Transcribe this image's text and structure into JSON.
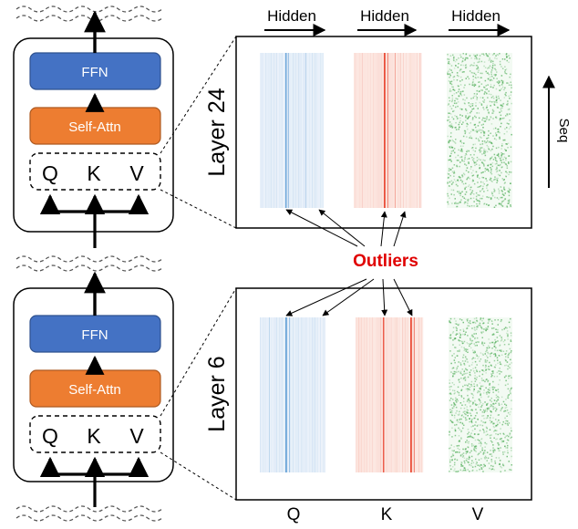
{
  "blocks": [
    {
      "ffn_label": "FFN",
      "attn_label": "Self-Attn",
      "q_label": "Q",
      "k_label": "K",
      "v_label": "V"
    },
    {
      "ffn_label": "FFN",
      "attn_label": "Self-Attn",
      "q_label": "Q",
      "k_label": "K",
      "v_label": "V"
    }
  ],
  "top_labels": [
    "Hidden",
    "Hidden",
    "Hidden"
  ],
  "seq_label": "Seq",
  "panels": [
    {
      "layer_label": "Layer 24"
    },
    {
      "layer_label": "Layer 6"
    }
  ],
  "outliers_label": "Outliers",
  "bottom_labels": [
    "Q",
    "K",
    "V"
  ],
  "colors": {
    "ffn": "#4472c4",
    "attn": "#ed7d31",
    "q_map": "#5b9bd5",
    "k_map": "#e8402a",
    "v_map": "#3fa548",
    "outliers": "#e00000"
  }
}
